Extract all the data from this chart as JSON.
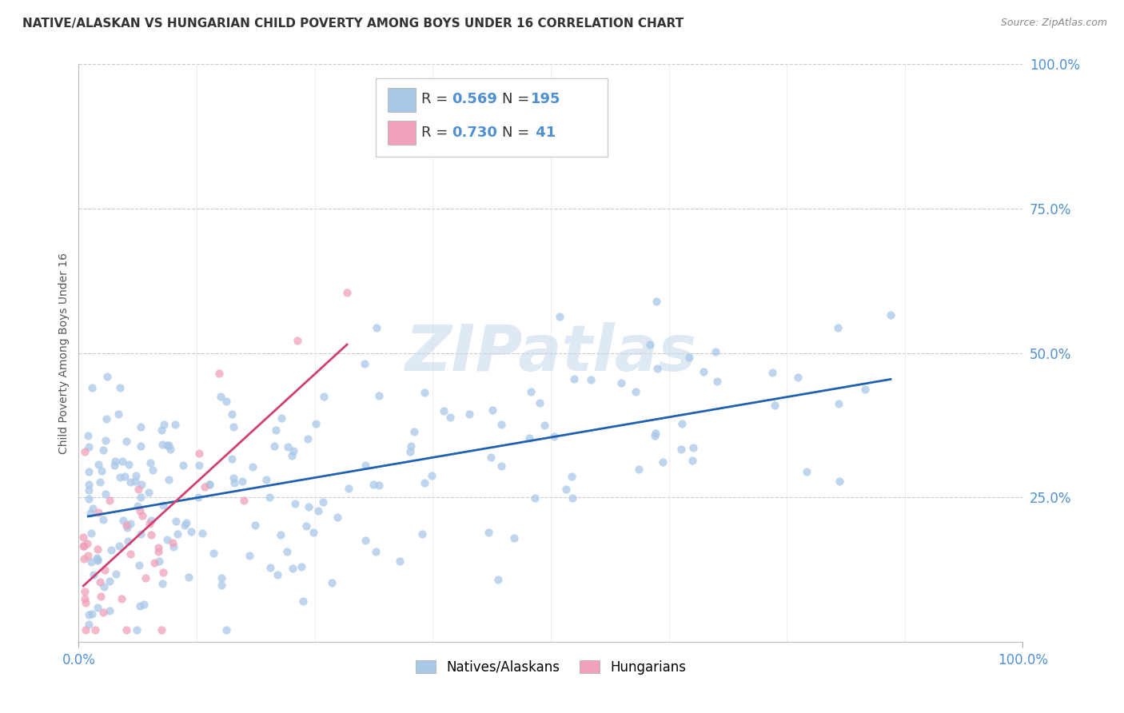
{
  "title": "NATIVE/ALASKAN VS HUNGARIAN CHILD POVERTY AMONG BOYS UNDER 16 CORRELATION CHART",
  "source_text": "Source: ZipAtlas.com",
  "ylabel": "Child Poverty Among Boys Under 16",
  "watermark": "ZIPatlas",
  "xlim": [
    0,
    1
  ],
  "ylim": [
    0,
    1
  ],
  "series1_color": "#a8c8e8",
  "series1_line_color": "#2060b0",
  "series2_color": "#f0a0b8",
  "series2_line_color": "#d04070",
  "background_color": "#ffffff",
  "grid_color": "#cccccc",
  "tick_label_color": "#5090d0",
  "title_color": "#333333",
  "source_color": "#888888",
  "legend_R_color": "#5090d0",
  "legend_N_color": "#5090d0",
  "legend_label_color": "#333333",
  "ylabel_color": "#555555"
}
